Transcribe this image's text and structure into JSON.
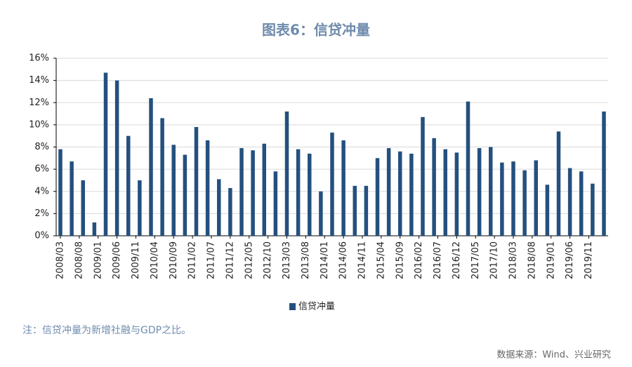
{
  "chart_data": {
    "type": "bar",
    "title": "图表6：信贷冲量",
    "x": [
      "2008/03",
      "2008/06",
      "2008/09",
      "2008/12",
      "2009/03",
      "2009/06",
      "2009/09",
      "2009/12",
      "2010/03",
      "2010/06",
      "2010/09",
      "2010/12",
      "2011/03",
      "2011/06",
      "2011/09",
      "2011/12",
      "2012/03",
      "2012/06",
      "2012/09",
      "2012/12",
      "2013/03",
      "2013/06",
      "2013/09",
      "2013/12",
      "2014/03",
      "2014/06",
      "2014/09",
      "2014/12",
      "2015/03",
      "2015/06",
      "2015/09",
      "2015/12",
      "2016/03",
      "2016/06",
      "2016/09",
      "2016/12",
      "2017/03",
      "2017/06",
      "2017/09",
      "2017/12",
      "2018/03",
      "2018/06",
      "2018/09",
      "2018/12",
      "2019/03",
      "2019/06",
      "2019/09",
      "2019/12",
      "2020/03"
    ],
    "series": [
      {
        "name": "信贷冲量",
        "color": "#24507e",
        "values": [
          7.8,
          6.7,
          5.0,
          1.2,
          14.7,
          14.0,
          9.0,
          5.0,
          12.4,
          10.6,
          8.2,
          7.3,
          9.8,
          8.6,
          5.1,
          4.3,
          7.9,
          7.7,
          8.3,
          5.8,
          11.2,
          7.8,
          7.4,
          4.0,
          9.3,
          8.6,
          4.5,
          4.5,
          7.0,
          7.9,
          7.6,
          7.4,
          10.7,
          8.8,
          7.8,
          7.5,
          12.1,
          7.9,
          8.0,
          6.6,
          6.7,
          5.9,
          6.8,
          4.6,
          9.4,
          6.1,
          5.8,
          4.7,
          11.2
        ]
      }
    ],
    "xticks": [
      "2008/03",
      "2008/08",
      "2009/01",
      "2009/06",
      "2009/11",
      "2010/04",
      "2010/09",
      "2011/02",
      "2011/07",
      "2011/12",
      "2012/05",
      "2012/10",
      "2013/03",
      "2013/08",
      "2014/01",
      "2014/06",
      "2014/11",
      "2015/04",
      "2015/09",
      "2016/02",
      "2016/07",
      "2016/12",
      "2017/05",
      "2017/10",
      "2018/03",
      "2018/08",
      "2019/01",
      "2019/06",
      "2019/11"
    ],
    "ylim": [
      0,
      16
    ],
    "yticks": [
      {
        "value": 0,
        "label": "0%"
      },
      {
        "value": 2,
        "label": "2%"
      },
      {
        "value": 4,
        "label": "4%"
      },
      {
        "value": 6,
        "label": "6%"
      },
      {
        "value": 8,
        "label": "8%"
      },
      {
        "value": 10,
        "label": "10%"
      },
      {
        "value": 12,
        "label": "12%"
      },
      {
        "value": 14,
        "label": "14%"
      },
      {
        "value": 16,
        "label": "16%"
      }
    ],
    "grid": true,
    "legend": "bottom",
    "note": "注：信贷冲量为新增社融与GDP之比。",
    "source": "数据来源：Wind、兴业研究"
  }
}
